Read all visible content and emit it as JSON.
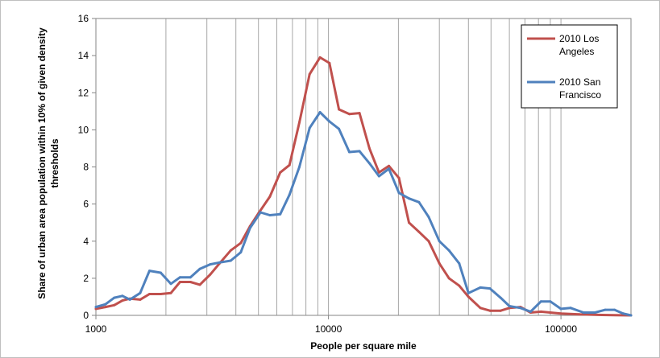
{
  "chart_data": {
    "type": "line",
    "title": "",
    "xlabel": "People per square mile",
    "ylabel_lines": [
      "Share of urban area population within 10% of given density",
      "thresholds"
    ],
    "x_scale": "log",
    "xlim": [
      1000,
      200000
    ],
    "ylim": [
      0,
      16
    ],
    "x_ticks": [
      1000,
      10000,
      100000
    ],
    "x_tick_labels": [
      "1000",
      "10000",
      "100000"
    ],
    "y_ticks": [
      0,
      2,
      4,
      6,
      8,
      10,
      12,
      14,
      16
    ],
    "y_tick_labels": [
      "0",
      "2",
      "4",
      "6",
      "8",
      "10",
      "12",
      "14",
      "16"
    ],
    "grid": "vertical minor+major (log), none horizontal",
    "legend_position": "top-right",
    "series": [
      {
        "name": "2010 Los Angeles",
        "color": "#C0504D",
        "legend_lines": [
          "2010 Los",
          "Angeles"
        ],
        "points": [
          [
            1000,
            0.35
          ],
          [
            1100,
            0.45
          ],
          [
            1200,
            0.55
          ],
          [
            1300,
            0.8
          ],
          [
            1400,
            0.9
          ],
          [
            1550,
            0.85
          ],
          [
            1700,
            1.15
          ],
          [
            1900,
            1.15
          ],
          [
            2100,
            1.2
          ],
          [
            2300,
            1.8
          ],
          [
            2550,
            1.8
          ],
          [
            2800,
            1.65
          ],
          [
            3100,
            2.2
          ],
          [
            3400,
            2.8
          ],
          [
            3800,
            3.5
          ],
          [
            4200,
            3.9
          ],
          [
            4600,
            4.8
          ],
          [
            5000,
            5.5
          ],
          [
            5600,
            6.4
          ],
          [
            6200,
            7.7
          ],
          [
            6800,
            8.1
          ],
          [
            7500,
            10.4
          ],
          [
            8300,
            13.0
          ],
          [
            9200,
            13.9
          ],
          [
            10100,
            13.6
          ],
          [
            11100,
            11.1
          ],
          [
            12300,
            10.85
          ],
          [
            13600,
            10.9
          ],
          [
            15000,
            9.0
          ],
          [
            16500,
            7.7
          ],
          [
            18200,
            8.05
          ],
          [
            20100,
            7.4
          ],
          [
            22200,
            5.0
          ],
          [
            24500,
            4.5
          ],
          [
            27000,
            4.0
          ],
          [
            30000,
            2.8
          ],
          [
            33000,
            2.0
          ],
          [
            36500,
            1.6
          ],
          [
            40000,
            1.0
          ],
          [
            45000,
            0.4
          ],
          [
            49500,
            0.25
          ],
          [
            55000,
            0.25
          ],
          [
            60000,
            0.4
          ],
          [
            67000,
            0.45
          ],
          [
            74000,
            0.15
          ],
          [
            82000,
            0.2
          ],
          [
            90000,
            0.15
          ],
          [
            100000,
            0.1
          ],
          [
            120000,
            0.05
          ],
          [
            150000,
            0.02
          ],
          [
            200000,
            0.0
          ]
        ]
      },
      {
        "name": "2010 San Francisco",
        "color": "#4F81BD",
        "legend_lines": [
          "2010 San",
          "Francisco"
        ],
        "points": [
          [
            1000,
            0.45
          ],
          [
            1100,
            0.6
          ],
          [
            1200,
            0.95
          ],
          [
            1300,
            1.05
          ],
          [
            1400,
            0.85
          ],
          [
            1550,
            1.2
          ],
          [
            1700,
            2.4
          ],
          [
            1900,
            2.3
          ],
          [
            2100,
            1.7
          ],
          [
            2300,
            2.05
          ],
          [
            2550,
            2.05
          ],
          [
            2800,
            2.5
          ],
          [
            3100,
            2.75
          ],
          [
            3400,
            2.85
          ],
          [
            3800,
            2.95
          ],
          [
            4200,
            3.4
          ],
          [
            4600,
            4.7
          ],
          [
            5100,
            5.55
          ],
          [
            5600,
            5.4
          ],
          [
            6200,
            5.45
          ],
          [
            6800,
            6.5
          ],
          [
            7500,
            8.0
          ],
          [
            8300,
            10.1
          ],
          [
            9200,
            10.95
          ],
          [
            10100,
            10.45
          ],
          [
            11100,
            10.05
          ],
          [
            12300,
            8.8
          ],
          [
            13600,
            8.85
          ],
          [
            15000,
            8.2
          ],
          [
            16500,
            7.5
          ],
          [
            18200,
            7.9
          ],
          [
            20100,
            6.6
          ],
          [
            22200,
            6.3
          ],
          [
            24500,
            6.1
          ],
          [
            27000,
            5.3
          ],
          [
            30000,
            4.0
          ],
          [
            33000,
            3.5
          ],
          [
            36500,
            2.8
          ],
          [
            40000,
            1.2
          ],
          [
            45000,
            1.5
          ],
          [
            49500,
            1.45
          ],
          [
            55000,
            0.95
          ],
          [
            60000,
            0.5
          ],
          [
            67000,
            0.4
          ],
          [
            74000,
            0.2
          ],
          [
            82000,
            0.75
          ],
          [
            90000,
            0.75
          ],
          [
            100000,
            0.35
          ],
          [
            110000,
            0.4
          ],
          [
            125000,
            0.15
          ],
          [
            140000,
            0.15
          ],
          [
            155000,
            0.3
          ],
          [
            170000,
            0.3
          ],
          [
            185000,
            0.1
          ],
          [
            200000,
            0.0
          ]
        ]
      }
    ]
  }
}
